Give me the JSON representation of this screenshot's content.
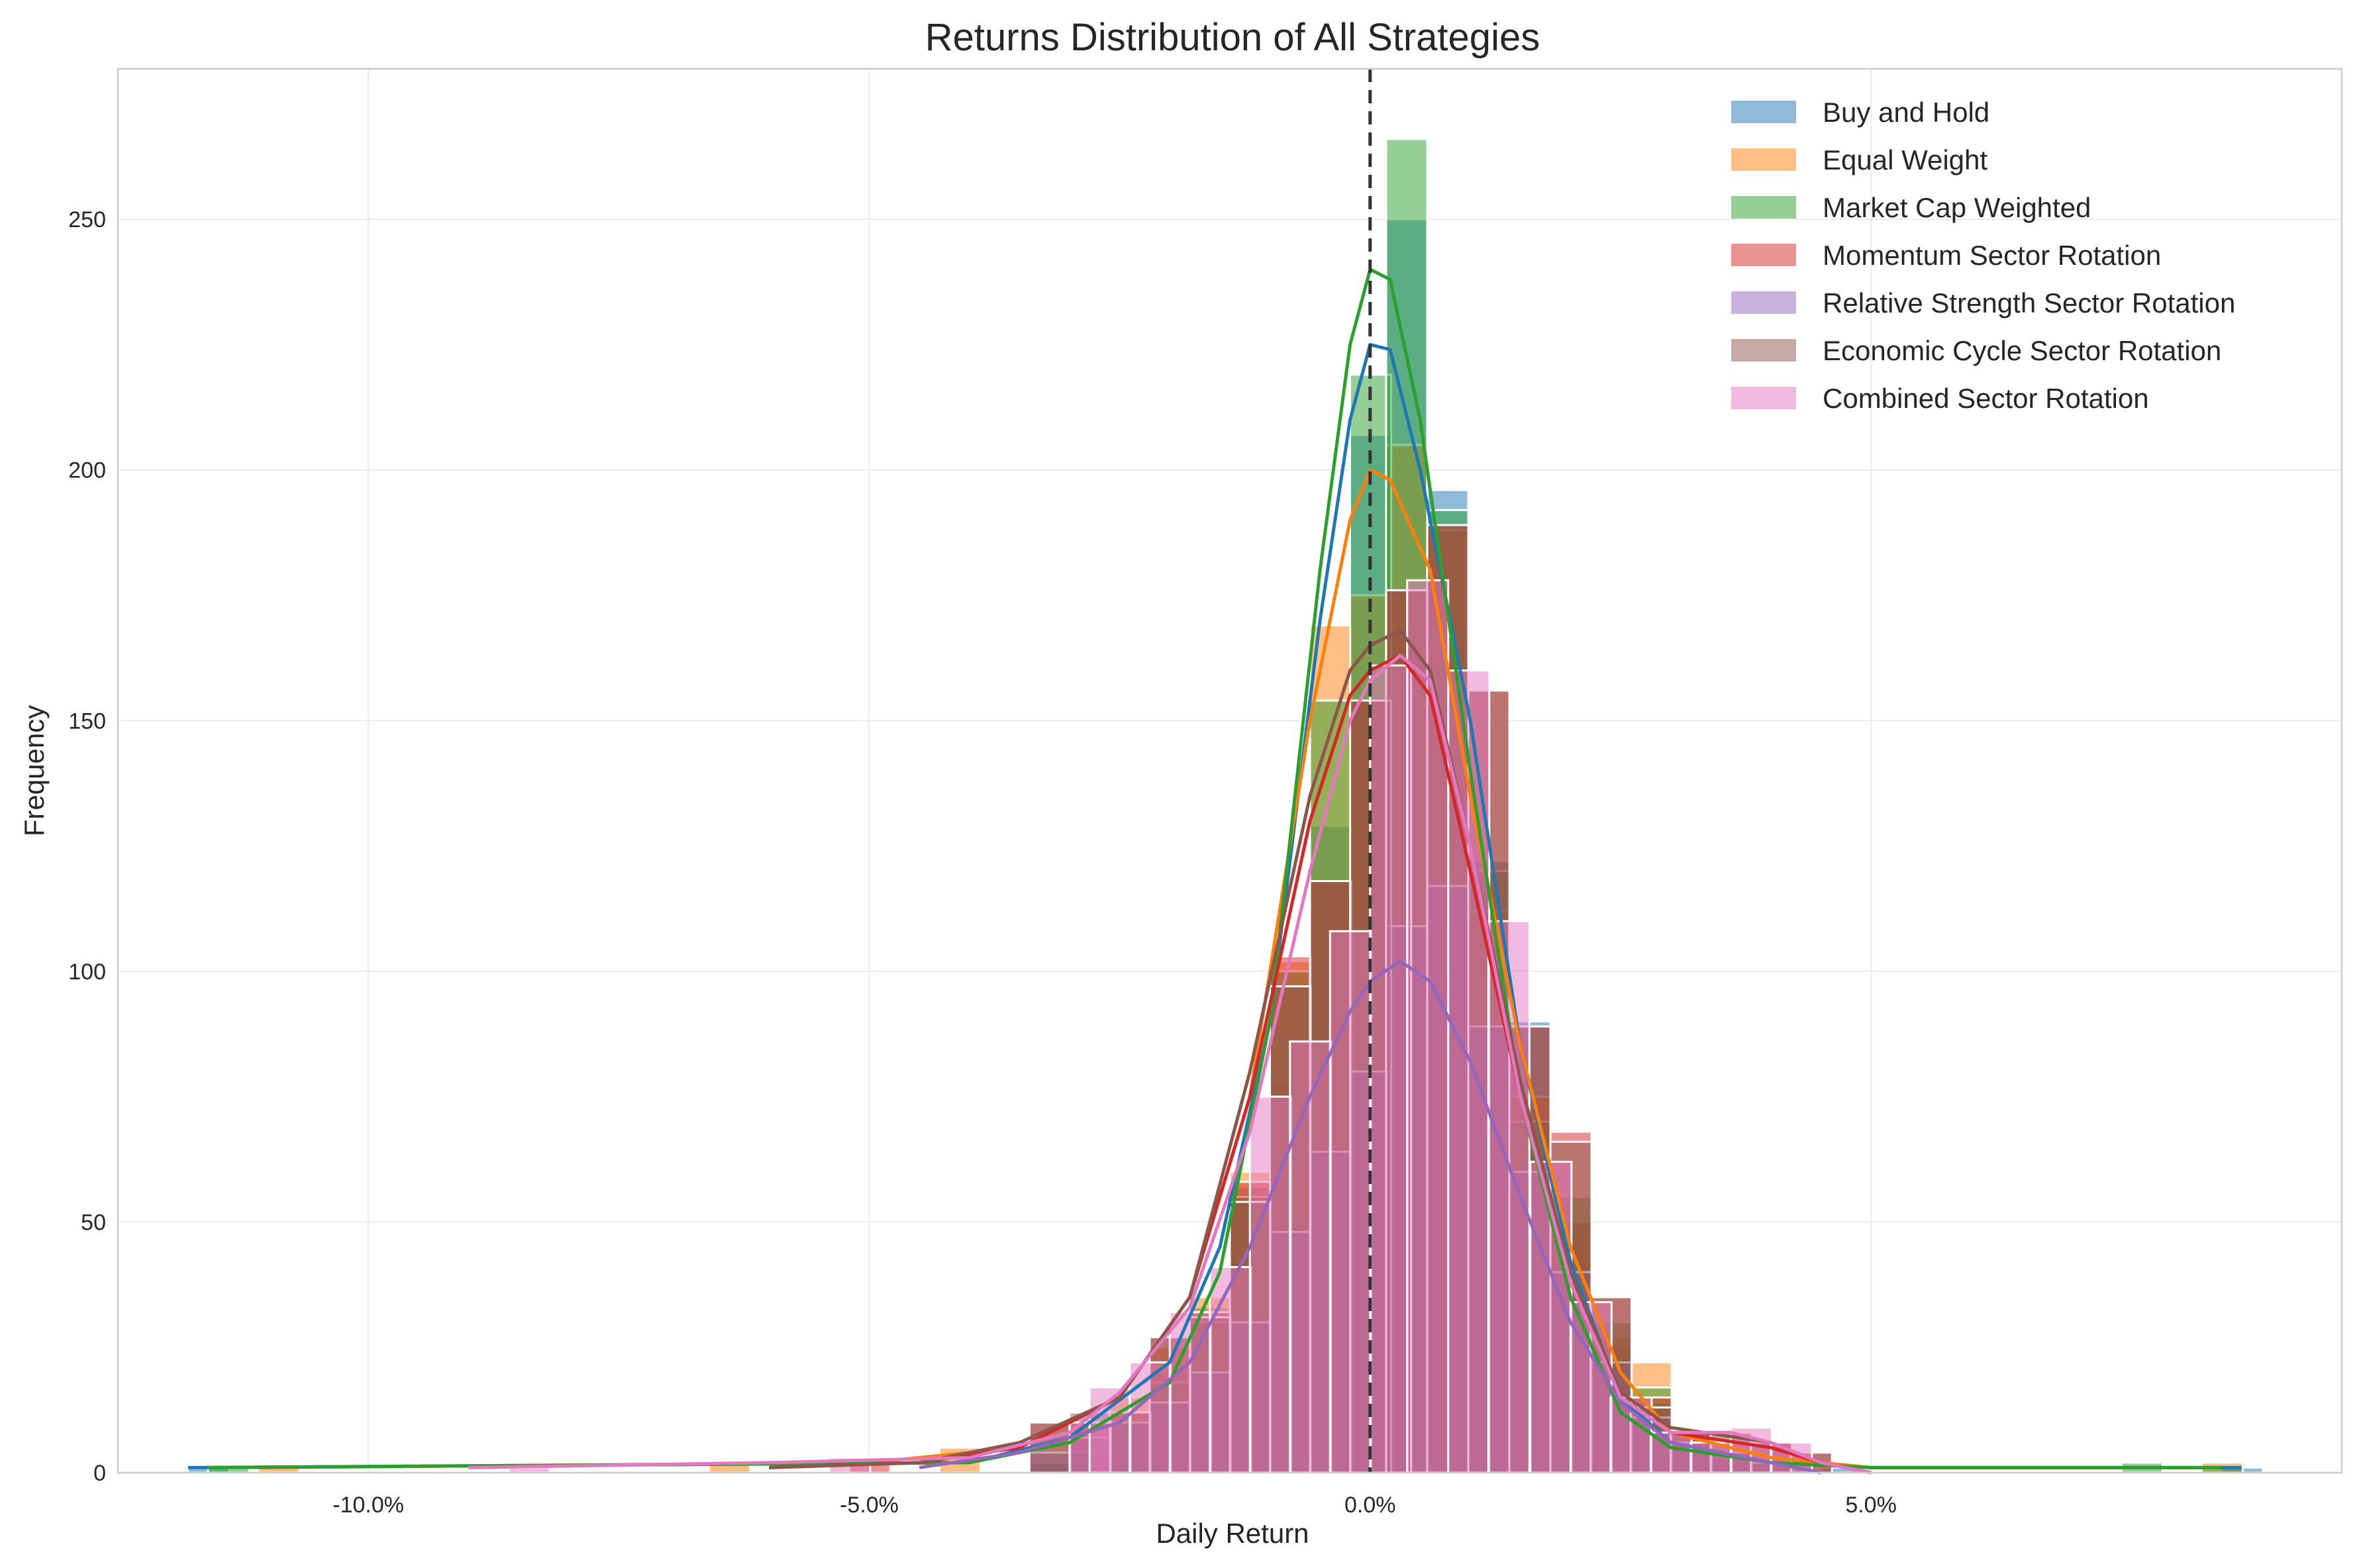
{
  "chart_data": {
    "type": "histogram",
    "title": "Returns Distribution of All Strategies",
    "xlabel": "Daily Return",
    "ylabel": "Frequency",
    "xlim": [
      -0.125,
      0.097
    ],
    "ylim": [
      0,
      280
    ],
    "x_ticks": [
      {
        "value": -0.1,
        "label": "-10.0%"
      },
      {
        "value": -0.05,
        "label": "-5.0%"
      },
      {
        "value": 0.0,
        "label": "0.0%"
      },
      {
        "value": 0.05,
        "label": "5.0%"
      }
    ],
    "y_ticks": [
      {
        "value": 0,
        "label": "0"
      },
      {
        "value": 50,
        "label": "50"
      },
      {
        "value": 100,
        "label": "100"
      },
      {
        "value": 150,
        "label": "150"
      },
      {
        "value": 200,
        "label": "200"
      },
      {
        "value": 250,
        "label": "250"
      }
    ],
    "grid": true,
    "legend_position": "top-right",
    "reference_line": {
      "x": 0.0,
      "style": "dashed",
      "color": "#333333"
    },
    "series": [
      {
        "name": "Buy and Hold",
        "color": "#1f77b4",
        "bin_width": 0.0041,
        "bins": [
          [
            -0.118,
            1
          ],
          [
            -0.034,
            2
          ],
          [
            -0.03,
            4
          ],
          [
            -0.026,
            8
          ],
          [
            -0.022,
            20
          ],
          [
            -0.018,
            33
          ],
          [
            -0.014,
            57
          ],
          [
            -0.01,
            78
          ],
          [
            -0.006,
            129
          ],
          [
            -0.002,
            207
          ],
          [
            0.0016,
            250
          ],
          [
            0.0057,
            196
          ],
          [
            0.0098,
            122
          ],
          [
            0.0139,
            90
          ],
          [
            0.018,
            50
          ],
          [
            0.022,
            25
          ],
          [
            0.026,
            14
          ],
          [
            0.03,
            8
          ],
          [
            0.034,
            4
          ],
          [
            0.038,
            2
          ],
          [
            0.045,
            1
          ],
          [
            0.085,
            1
          ]
        ],
        "kde": [
          [
            -0.118,
            1
          ],
          [
            -0.04,
            2
          ],
          [
            -0.03,
            7
          ],
          [
            -0.02,
            22
          ],
          [
            -0.015,
            45
          ],
          [
            -0.01,
            90
          ],
          [
            -0.005,
            170
          ],
          [
            -0.002,
            210
          ],
          [
            0.0,
            225
          ],
          [
            0.002,
            224
          ],
          [
            0.005,
            200
          ],
          [
            0.01,
            150
          ],
          [
            0.015,
            85
          ],
          [
            0.02,
            42
          ],
          [
            0.025,
            15
          ],
          [
            0.03,
            6
          ],
          [
            0.04,
            2
          ],
          [
            0.05,
            1
          ],
          [
            0.087,
            1
          ]
        ]
      },
      {
        "name": "Equal Weight",
        "color": "#ff7f0e",
        "bin_width": 0.0041,
        "bins": [
          [
            -0.111,
            1
          ],
          [
            -0.066,
            2
          ],
          [
            -0.043,
            5
          ],
          [
            -0.03,
            10
          ],
          [
            -0.026,
            15
          ],
          [
            -0.022,
            25
          ],
          [
            -0.018,
            35
          ],
          [
            -0.014,
            60
          ],
          [
            -0.01,
            102
          ],
          [
            -0.006,
            169
          ],
          [
            -0.002,
            175
          ],
          [
            0.0016,
            205
          ],
          [
            0.0057,
            188
          ],
          [
            0.0098,
            112
          ],
          [
            0.0139,
            75
          ],
          [
            0.018,
            50
          ],
          [
            0.022,
            27
          ],
          [
            0.026,
            22
          ],
          [
            0.03,
            6
          ],
          [
            0.034,
            4
          ],
          [
            0.038,
            2
          ],
          [
            0.083,
            2
          ]
        ],
        "kde": [
          [
            -0.111,
            1
          ],
          [
            -0.05,
            2
          ],
          [
            -0.035,
            5
          ],
          [
            -0.025,
            15
          ],
          [
            -0.018,
            35
          ],
          [
            -0.012,
            75
          ],
          [
            -0.006,
            150
          ],
          [
            -0.002,
            190
          ],
          [
            0.0,
            200
          ],
          [
            0.002,
            198
          ],
          [
            0.006,
            180
          ],
          [
            0.01,
            135
          ],
          [
            0.015,
            85
          ],
          [
            0.02,
            45
          ],
          [
            0.025,
            20
          ],
          [
            0.03,
            8
          ],
          [
            0.04,
            3
          ],
          [
            0.05,
            1
          ],
          [
            0.085,
            1
          ]
        ]
      },
      {
        "name": "Market Cap Weighted",
        "color": "#2ca02c",
        "bin_width": 0.0041,
        "bins": [
          [
            -0.116,
            1
          ],
          [
            -0.03,
            4
          ],
          [
            -0.026,
            10
          ],
          [
            -0.022,
            18
          ],
          [
            -0.018,
            30
          ],
          [
            -0.014,
            55
          ],
          [
            -0.01,
            100
          ],
          [
            -0.006,
            154
          ],
          [
            -0.002,
            219
          ],
          [
            0.0016,
            266
          ],
          [
            0.0057,
            192
          ],
          [
            0.0098,
            120
          ],
          [
            0.0139,
            70
          ],
          [
            0.018,
            55
          ],
          [
            0.022,
            30
          ],
          [
            0.026,
            17
          ],
          [
            0.03,
            6
          ],
          [
            0.034,
            3
          ],
          [
            0.038,
            2
          ],
          [
            0.075,
            2
          ],
          [
            0.083,
            1
          ]
        ],
        "kde": [
          [
            -0.116,
            1
          ],
          [
            -0.04,
            2
          ],
          [
            -0.03,
            6
          ],
          [
            -0.02,
            18
          ],
          [
            -0.015,
            40
          ],
          [
            -0.01,
            90
          ],
          [
            -0.005,
            180
          ],
          [
            -0.002,
            225
          ],
          [
            0.0,
            240
          ],
          [
            0.002,
            238
          ],
          [
            0.005,
            210
          ],
          [
            0.01,
            140
          ],
          [
            0.015,
            75
          ],
          [
            0.02,
            35
          ],
          [
            0.025,
            12
          ],
          [
            0.03,
            5
          ],
          [
            0.04,
            2
          ],
          [
            0.05,
            1
          ],
          [
            0.085,
            1
          ]
        ]
      },
      {
        "name": "Momentum Sector Rotation",
        "color": "#d62728",
        "bin_width": 0.0041,
        "bins": [
          [
            -0.052,
            2
          ],
          [
            -0.034,
            10
          ],
          [
            -0.03,
            10
          ],
          [
            -0.026,
            12
          ],
          [
            -0.022,
            27
          ],
          [
            -0.018,
            32
          ],
          [
            -0.014,
            58
          ],
          [
            -0.01,
            103
          ],
          [
            -0.006,
            118
          ],
          [
            -0.002,
            154
          ],
          [
            0.0016,
            176
          ],
          [
            0.0057,
            189
          ],
          [
            0.0098,
            156
          ],
          [
            0.0139,
            89
          ],
          [
            0.018,
            68
          ],
          [
            0.022,
            35
          ],
          [
            0.026,
            15
          ],
          [
            0.03,
            8
          ],
          [
            0.034,
            6
          ],
          [
            0.038,
            6
          ],
          [
            0.042,
            4
          ]
        ],
        "kde": [
          [
            -0.06,
            1
          ],
          [
            -0.045,
            2
          ],
          [
            -0.035,
            5
          ],
          [
            -0.025,
            15
          ],
          [
            -0.018,
            35
          ],
          [
            -0.012,
            75
          ],
          [
            -0.006,
            130
          ],
          [
            -0.002,
            155
          ],
          [
            0.0,
            160
          ],
          [
            0.003,
            163
          ],
          [
            0.006,
            155
          ],
          [
            0.01,
            120
          ],
          [
            0.015,
            75
          ],
          [
            0.02,
            38
          ],
          [
            0.025,
            15
          ],
          [
            0.03,
            8
          ],
          [
            0.04,
            5
          ],
          [
            0.045,
            2
          ],
          [
            0.05,
            0
          ]
        ]
      },
      {
        "name": "Relative Strength Sector Rotation",
        "color": "#9467bd",
        "bin_width": 0.0041,
        "bins": [
          [
            -0.034,
            4
          ],
          [
            -0.03,
            7
          ],
          [
            -0.026,
            10
          ],
          [
            -0.022,
            14
          ],
          [
            -0.018,
            20
          ],
          [
            -0.014,
            30
          ],
          [
            -0.01,
            48
          ],
          [
            -0.006,
            64
          ],
          [
            -0.002,
            80
          ],
          [
            0.0016,
            109
          ],
          [
            0.0057,
            117
          ],
          [
            0.0098,
            89
          ],
          [
            0.0139,
            60
          ],
          [
            0.018,
            40
          ],
          [
            0.022,
            22
          ],
          [
            0.026,
            11
          ],
          [
            0.03,
            6
          ],
          [
            0.034,
            4
          ],
          [
            0.038,
            2
          ]
        ],
        "kde": [
          [
            -0.045,
            1
          ],
          [
            -0.035,
            4
          ],
          [
            -0.025,
            10
          ],
          [
            -0.018,
            22
          ],
          [
            -0.012,
            45
          ],
          [
            -0.006,
            75
          ],
          [
            -0.002,
            92
          ],
          [
            0.0,
            98
          ],
          [
            0.003,
            102
          ],
          [
            0.006,
            98
          ],
          [
            0.01,
            82
          ],
          [
            0.015,
            55
          ],
          [
            0.02,
            30
          ],
          [
            0.025,
            14
          ],
          [
            0.03,
            6
          ],
          [
            0.04,
            2
          ],
          [
            0.045,
            0
          ]
        ]
      },
      {
        "name": "Economic Cycle Sector Rotation",
        "color": "#8c564b",
        "bin_width": 0.0041,
        "bins": [
          [
            -0.034,
            10
          ],
          [
            -0.03,
            12
          ],
          [
            -0.026,
            12
          ],
          [
            -0.022,
            27
          ],
          [
            -0.018,
            31
          ],
          [
            -0.014,
            54
          ],
          [
            -0.01,
            97
          ],
          [
            -0.006,
            118
          ],
          [
            -0.002,
            154
          ],
          [
            0.0016,
            176
          ],
          [
            0.0057,
            189
          ],
          [
            0.0098,
            156
          ],
          [
            0.0139,
            89
          ],
          [
            0.018,
            66
          ],
          [
            0.022,
            35
          ],
          [
            0.026,
            13
          ],
          [
            0.03,
            8
          ],
          [
            0.034,
            8
          ],
          [
            0.038,
            6
          ],
          [
            0.042,
            4
          ]
        ],
        "kde": [
          [
            -0.06,
            1
          ],
          [
            -0.045,
            2
          ],
          [
            -0.035,
            6
          ],
          [
            -0.025,
            15
          ],
          [
            -0.018,
            35
          ],
          [
            -0.012,
            80
          ],
          [
            -0.006,
            135
          ],
          [
            -0.002,
            160
          ],
          [
            0.0,
            165
          ],
          [
            0.003,
            168
          ],
          [
            0.006,
            160
          ],
          [
            0.01,
            125
          ],
          [
            0.015,
            78
          ],
          [
            0.02,
            40
          ],
          [
            0.025,
            16
          ],
          [
            0.03,
            9
          ],
          [
            0.04,
            6
          ],
          [
            0.045,
            2
          ],
          [
            0.05,
            0
          ]
        ]
      },
      {
        "name": "Combined Sector Rotation",
        "color": "#e377c2",
        "bin_width": 0.0041,
        "bins": [
          [
            -0.086,
            1
          ],
          [
            -0.054,
            3
          ],
          [
            -0.03,
            10
          ],
          [
            -0.028,
            17
          ],
          [
            -0.024,
            22
          ],
          [
            -0.02,
            32
          ],
          [
            -0.016,
            41
          ],
          [
            -0.012,
            75
          ],
          [
            -0.008,
            86
          ],
          [
            -0.004,
            108
          ],
          [
            0.0,
            161
          ],
          [
            0.0037,
            178
          ],
          [
            0.0078,
            160
          ],
          [
            0.0118,
            110
          ],
          [
            0.016,
            62
          ],
          [
            0.02,
            34
          ],
          [
            0.024,
            15
          ],
          [
            0.028,
            8
          ],
          [
            0.032,
            6
          ],
          [
            0.036,
            9
          ],
          [
            0.04,
            6
          ]
        ],
        "kde": [
          [
            -0.09,
            1
          ],
          [
            -0.06,
            2
          ],
          [
            -0.04,
            3
          ],
          [
            -0.03,
            8
          ],
          [
            -0.025,
            16
          ],
          [
            -0.018,
            33
          ],
          [
            -0.012,
            68
          ],
          [
            -0.006,
            120
          ],
          [
            -0.002,
            150
          ],
          [
            0.0,
            158
          ],
          [
            0.003,
            163
          ],
          [
            0.006,
            158
          ],
          [
            0.01,
            125
          ],
          [
            0.015,
            75
          ],
          [
            0.02,
            38
          ],
          [
            0.025,
            15
          ],
          [
            0.03,
            8
          ],
          [
            0.036,
            8
          ],
          [
            0.04,
            6
          ],
          [
            0.045,
            2
          ],
          [
            0.05,
            0
          ]
        ]
      }
    ]
  }
}
